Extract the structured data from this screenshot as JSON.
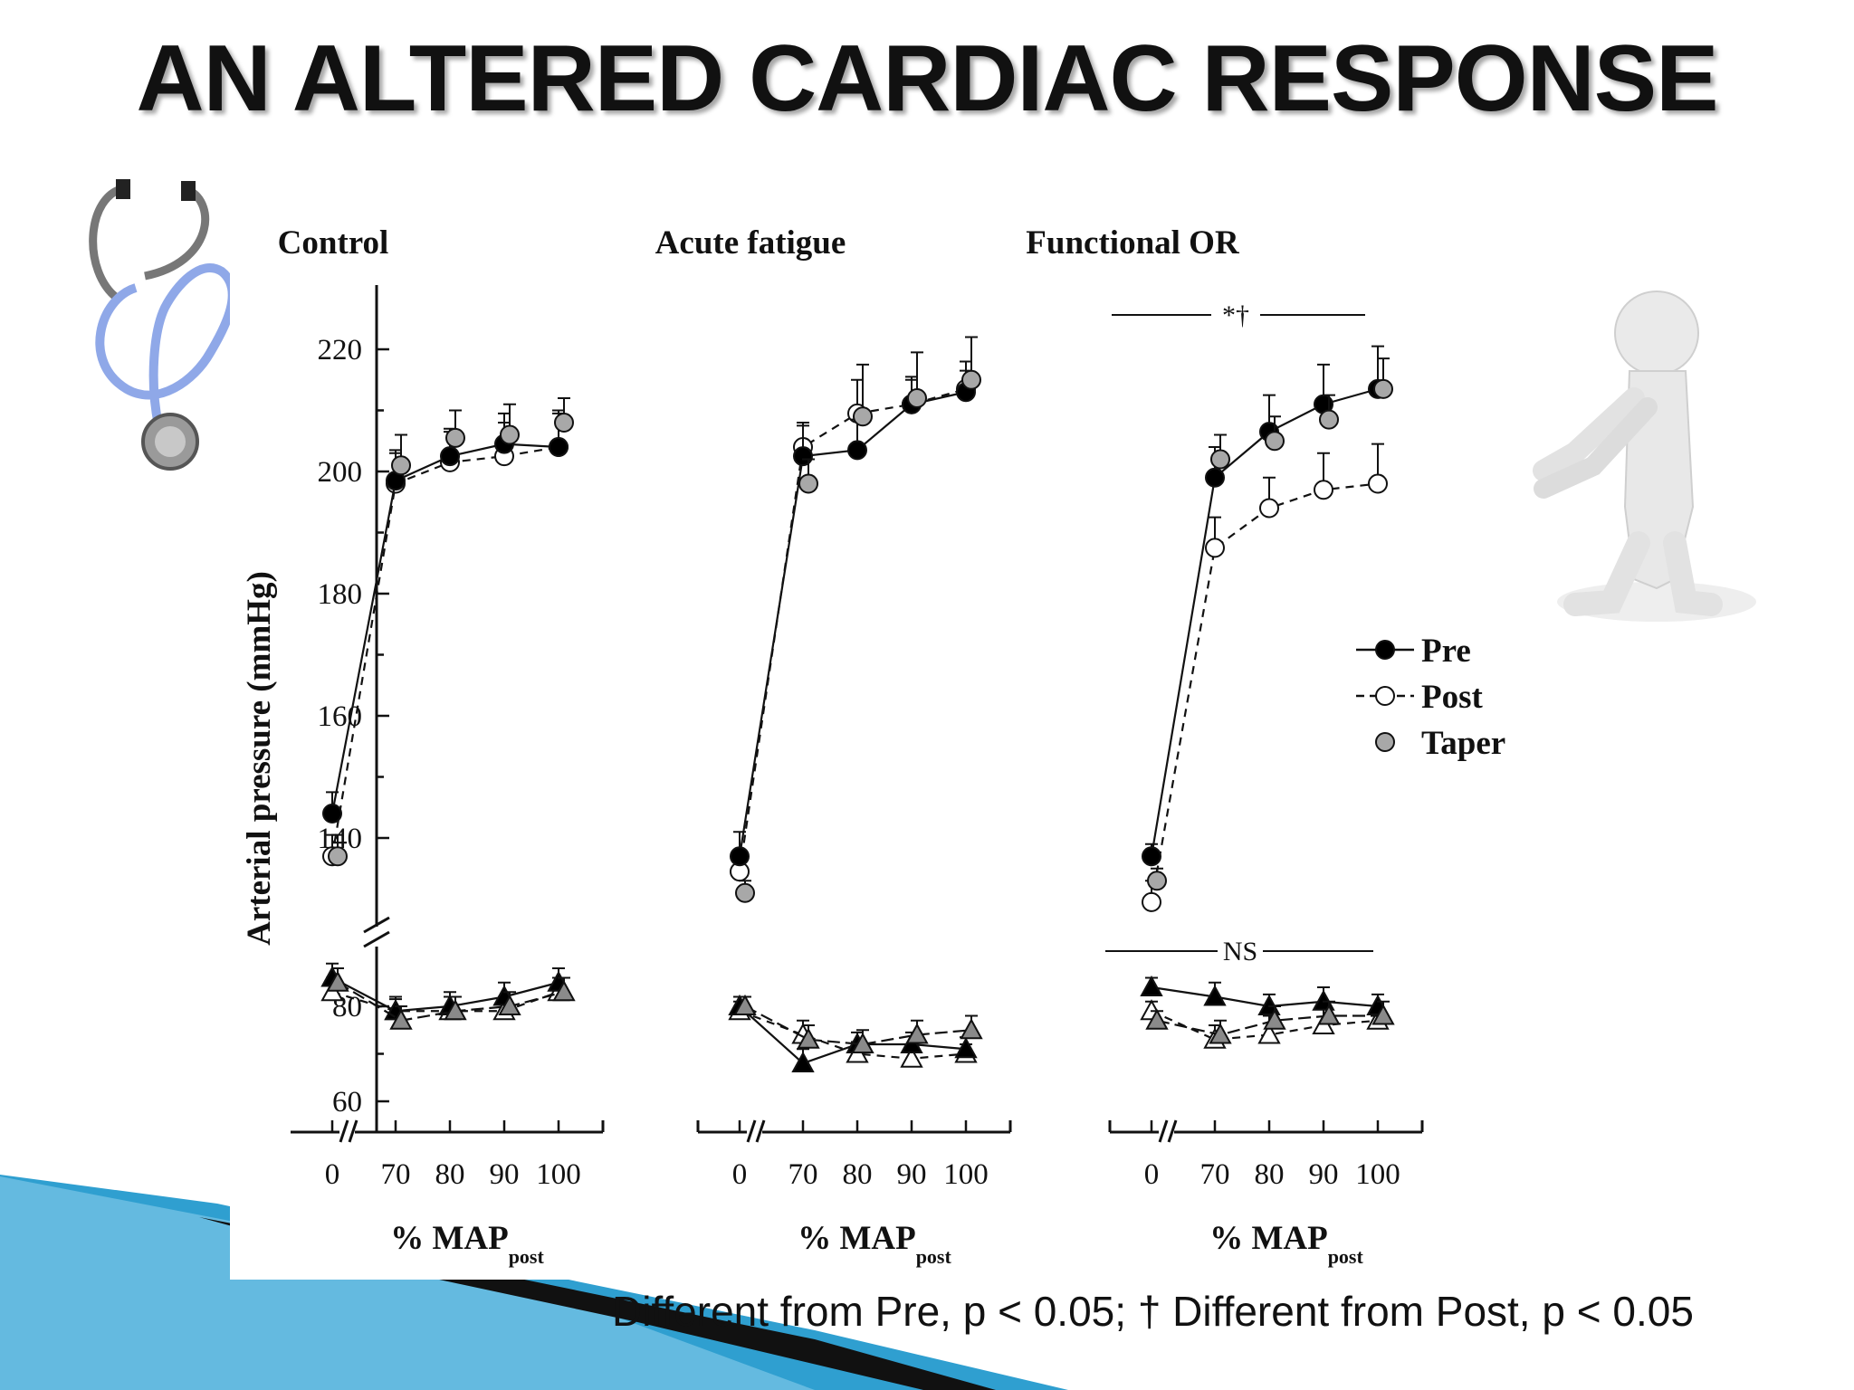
{
  "slide": {
    "title": "AN ALTERED CARDIAC RESPONSE",
    "footnote": "Different from Pre, p < 0.05; † Different from Post, p < 0.05"
  },
  "icons": [
    "stethoscope-icon",
    "pointing-figure-icon"
  ],
  "colors": {
    "pre": "#000000",
    "post": "#ffffff",
    "taper": "#a8a8a8",
    "accent_blue": "#2f9fd0"
  },
  "chart_data": {
    "type": "line",
    "ylabel": "Arterial pressure (mmHg)",
    "yticks": [
      "60",
      "80",
      "140",
      "160",
      "180",
      "200",
      "220"
    ],
    "xticks": [
      "0",
      "70",
      "80",
      "90",
      "100"
    ],
    "xlabel_main": "% MAP",
    "xlabel_sub": "post",
    "legend": [
      {
        "name": "Pre",
        "marker": "filled-circle",
        "line": "solid"
      },
      {
        "name": "Post",
        "marker": "open-circle",
        "line": "dashed"
      },
      {
        "name": "Taper",
        "marker": "grey-circle",
        "line": "none"
      }
    ],
    "legend_position": "right",
    "panels": [
      {
        "title": "Control",
        "annotations": [],
        "upper": {
          "Pre": {
            "y": [
              144,
              198.5,
              202.5,
              204.5,
              204
            ],
            "err": [
              3.5,
              5,
              4.5,
              5,
              6
            ]
          },
          "Post": {
            "y": [
              137,
              198,
              201.5,
              202.5,
              204
            ],
            "err": [
              3.5,
              5,
              5,
              5.5,
              5.5
            ]
          },
          "Taper": {
            "y": [
              137,
              201,
              205.5,
              206,
              208
            ],
            "err": [
              3.5,
              5,
              4.5,
              5,
              4
            ]
          }
        },
        "lower": {
          "Pre": {
            "y": [
              86,
              79,
              80,
              82,
              85
            ],
            "err": [
              3,
              2.5,
              3,
              3,
              3
            ]
          },
          "Post": {
            "y": [
              83,
              79,
              79,
              79,
              83
            ],
            "err": [
              3,
              3,
              3,
              3,
              3
            ]
          },
          "Taper": {
            "y": [
              85,
              77,
              79,
              80,
              83
            ],
            "err": [
              3,
              3,
              3,
              3,
              3
            ]
          }
        }
      },
      {
        "title": "Acute fatigue",
        "annotations": [],
        "upper": {
          "Pre": {
            "y": [
              137,
              202.5,
              203.5,
              211,
              213
            ],
            "err": [
              4,
              5,
              5,
              4.5,
              3.5
            ]
          },
          "Post": {
            "y": [
              134.5,
              204,
              209.5,
              211,
              213.5
            ],
            "err": [
              2,
              4,
              5.5,
              4,
              4.5
            ]
          },
          "Taper": {
            "y": [
              131,
              198,
              209,
              212,
              215
            ],
            "err": [
              2,
              4,
              8.5,
              7.5,
              7
            ]
          }
        },
        "lower": {
          "Pre": {
            "y": [
              80,
              68,
              72,
              72,
              71
            ],
            "err": [
              2,
              3,
              2.5,
              2.5,
              2.5
            ]
          },
          "Post": {
            "y": [
              79,
              74,
              70,
              69,
              70
            ],
            "err": [
              2,
              3,
              2.5,
              2,
              2
            ]
          },
          "Taper": {
            "y": [
              80,
              73,
              72,
              74,
              75
            ],
            "err": [
              2,
              3,
              3,
              3,
              3
            ]
          }
        }
      },
      {
        "title": "Functional OR",
        "annotations": [
          "*†",
          "NS"
        ],
        "upper": {
          "Pre": {
            "y": [
              137,
              199,
              206.5,
              211,
              213.5
            ],
            "err": [
              2,
              5,
              6,
              6.5,
              7
            ]
          },
          "Post": {
            "y": [
              129.5,
              187.5,
              194,
              197,
              198
            ],
            "err": [
              3.5,
              5,
              5,
              6,
              6.5
            ]
          },
          "Taper": {
            "y": [
              133,
              202,
              205,
              208.5,
              213.5
            ],
            "err": [
              2,
              4,
              4,
              4,
              5
            ]
          }
        },
        "lower": {
          "Pre": {
            "y": [
              84,
              82,
              80,
              81,
              80
            ],
            "err": [
              2,
              3,
              2.5,
              3,
              2.5
            ]
          },
          "Post": {
            "y": [
              79,
              73,
              74,
              76,
              77
            ],
            "err": [
              2,
              3,
              4,
              3.5,
              3
            ]
          },
          "Taper": {
            "y": [
              77,
              74,
              77,
              78,
              78
            ],
            "err": [
              2,
              3,
              3,
              3,
              3
            ]
          }
        }
      }
    ]
  }
}
